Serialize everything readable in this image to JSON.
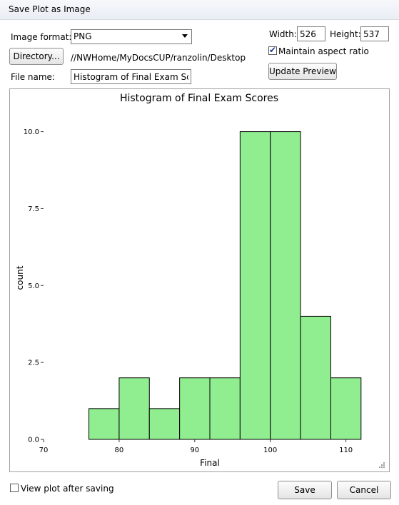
{
  "window": {
    "title": "Save Plot as Image"
  },
  "form": {
    "format_label": "Image format:",
    "format_value": "PNG",
    "directory_button": "Directory...",
    "directory_path": "//NWHome/MyDocsCUP/ranzolin/Desktop",
    "filename_label": "File name:",
    "filename_value": "Histogram of Final Exam Scores",
    "width_label": "Width:",
    "width_value": "526",
    "height_label": "Height:",
    "height_value": "537",
    "aspect_label": "Maintain aspect ratio",
    "aspect_checked": true,
    "update_button": "Update Preview",
    "view_after_label": "View plot after saving",
    "view_after_checked": false,
    "save_button": "Save",
    "cancel_button": "Cancel"
  },
  "colors": {
    "bar_fill": "#90ee90",
    "bar_stroke": "#000000"
  },
  "chart_data": {
    "type": "bar",
    "title": "Histogram of Final Exam Scores",
    "xlabel": "Final",
    "ylabel": "count",
    "xlim": [
      70,
      114
    ],
    "ylim": [
      0,
      10.5
    ],
    "xticks": [
      70,
      80,
      90,
      100,
      110
    ],
    "yticks": [
      0.0,
      2.5,
      5.0,
      7.5,
      10.0
    ],
    "ytick_labels": [
      "0.0",
      "2.5",
      "5.0",
      "7.5",
      "10.0"
    ],
    "bin_width": 4,
    "bins": [
      {
        "start": 72,
        "end": 76,
        "count": 0
      },
      {
        "start": 76,
        "end": 80,
        "count": 1
      },
      {
        "start": 80,
        "end": 84,
        "count": 2
      },
      {
        "start": 84,
        "end": 88,
        "count": 1
      },
      {
        "start": 88,
        "end": 92,
        "count": 2
      },
      {
        "start": 92,
        "end": 96,
        "count": 2
      },
      {
        "start": 96,
        "end": 100,
        "count": 10
      },
      {
        "start": 100,
        "end": 104,
        "count": 10
      },
      {
        "start": 104,
        "end": 108,
        "count": 4
      },
      {
        "start": 108,
        "end": 112,
        "count": 2
      }
    ],
    "grid": false
  }
}
